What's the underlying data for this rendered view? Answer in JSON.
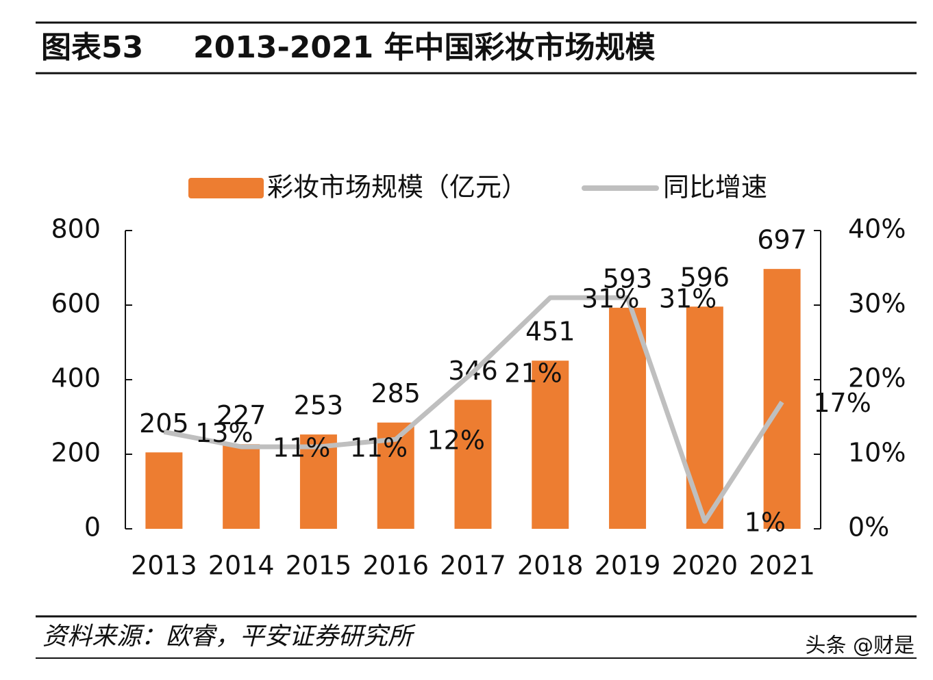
{
  "header": {
    "figure": "图表53",
    "title": "2013-2021 年中国彩妆市场规模"
  },
  "chart_data": {
    "type": "bar",
    "categories": [
      "2013",
      "2014",
      "2015",
      "2016",
      "2017",
      "2018",
      "2019",
      "2020",
      "2021"
    ],
    "series": [
      {
        "name": "彩妆市场规模（亿元）",
        "type": "bar",
        "color": "#ED7D31",
        "values": [
          205,
          227,
          253,
          285,
          346,
          451,
          593,
          596,
          697
        ]
      },
      {
        "name": "同比增速",
        "type": "line",
        "axis": "y2",
        "color": "#BFBFBF",
        "values": [
          13,
          11,
          11,
          12,
          21,
          31,
          31,
          1,
          17
        ],
        "value_labels": [
          "13%",
          "11%",
          "11%",
          "12%",
          "21%",
          "31%",
          "31%",
          "1%",
          "17%"
        ]
      }
    ],
    "ylim": [
      0,
      800
    ],
    "yticks": [
      0,
      200,
      400,
      600,
      800
    ],
    "y2lim": [
      0,
      40
    ],
    "y2ticks": [
      {
        "value": 0,
        "label": "0%"
      },
      {
        "value": 10,
        "label": "10%"
      },
      {
        "value": 20,
        "label": "20%"
      },
      {
        "value": 30,
        "label": "30%"
      },
      {
        "value": 40,
        "label": "40%"
      }
    ],
    "legend": "top"
  },
  "footer": {
    "source": "资料来源：欧睿，平安证券研究所",
    "watermark": "头条 @财是"
  }
}
